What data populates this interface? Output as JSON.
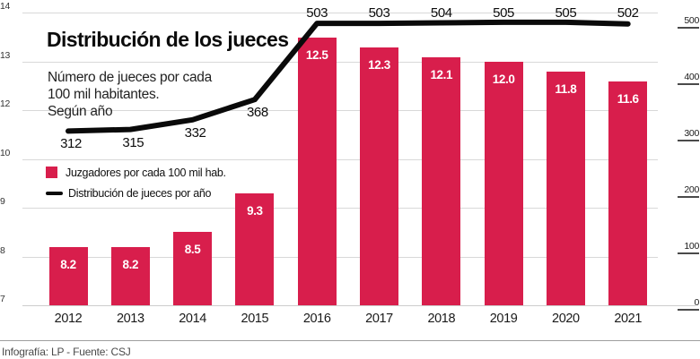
{
  "header": {
    "title": "Distribución de los jueces",
    "subtitle_lines": [
      "Número de jueces por cada",
      "100 mil habitantes.",
      "Según año"
    ]
  },
  "legend": {
    "bar_label": "Juzgadores por cada 100 mil hab.",
    "line_label": "Distribución de jueces por año"
  },
  "footer": {
    "credit": "Infografía: LP - Fuente: CSJ"
  },
  "colors": {
    "bar": "#d81e4c",
    "line": "#0a0a0a",
    "grid": "#d8d8d8",
    "bar_value_text": "#ffffff"
  },
  "chart_data": {
    "type": "bar+line combo",
    "categories": [
      "2012",
      "2013",
      "2014",
      "2015",
      "2016",
      "2017",
      "2018",
      "2019",
      "2020",
      "2021"
    ],
    "series": [
      {
        "name": "Juzgadores por cada 100 mil hab.",
        "type": "bar",
        "values": [
          8.2,
          8.2,
          8.5,
          9.3,
          12.5,
          12.3,
          12.1,
          12.0,
          11.8,
          11.6
        ],
        "value_labels": [
          "8.2",
          "8.2",
          "8.5",
          "9.3",
          "12.5",
          "12.3",
          "12.1",
          "12.0",
          "11.8",
          "11.6"
        ]
      },
      {
        "name": "Distribución de jueces por año",
        "type": "line",
        "values": [
          312,
          315,
          332,
          368,
          503,
          503,
          504,
          505,
          505,
          502
        ],
        "value_labels": [
          "312",
          "315",
          "332",
          "368",
          "503",
          "503",
          "504",
          "505",
          "505",
          "502"
        ]
      }
    ],
    "left_axis": {
      "tick_labels": [
        "14",
        "13",
        "12",
        "10",
        "9",
        "8",
        "7"
      ],
      "note": "bar axis, baseline at 7, gridlines evenly spaced, label 11 skipped as in source"
    },
    "right_axis": {
      "tick_labels": [
        "500",
        "400",
        "300",
        "200",
        "100",
        "0"
      ],
      "range": [
        0,
        500
      ]
    },
    "grid": true,
    "legend_position": "middle-left"
  }
}
